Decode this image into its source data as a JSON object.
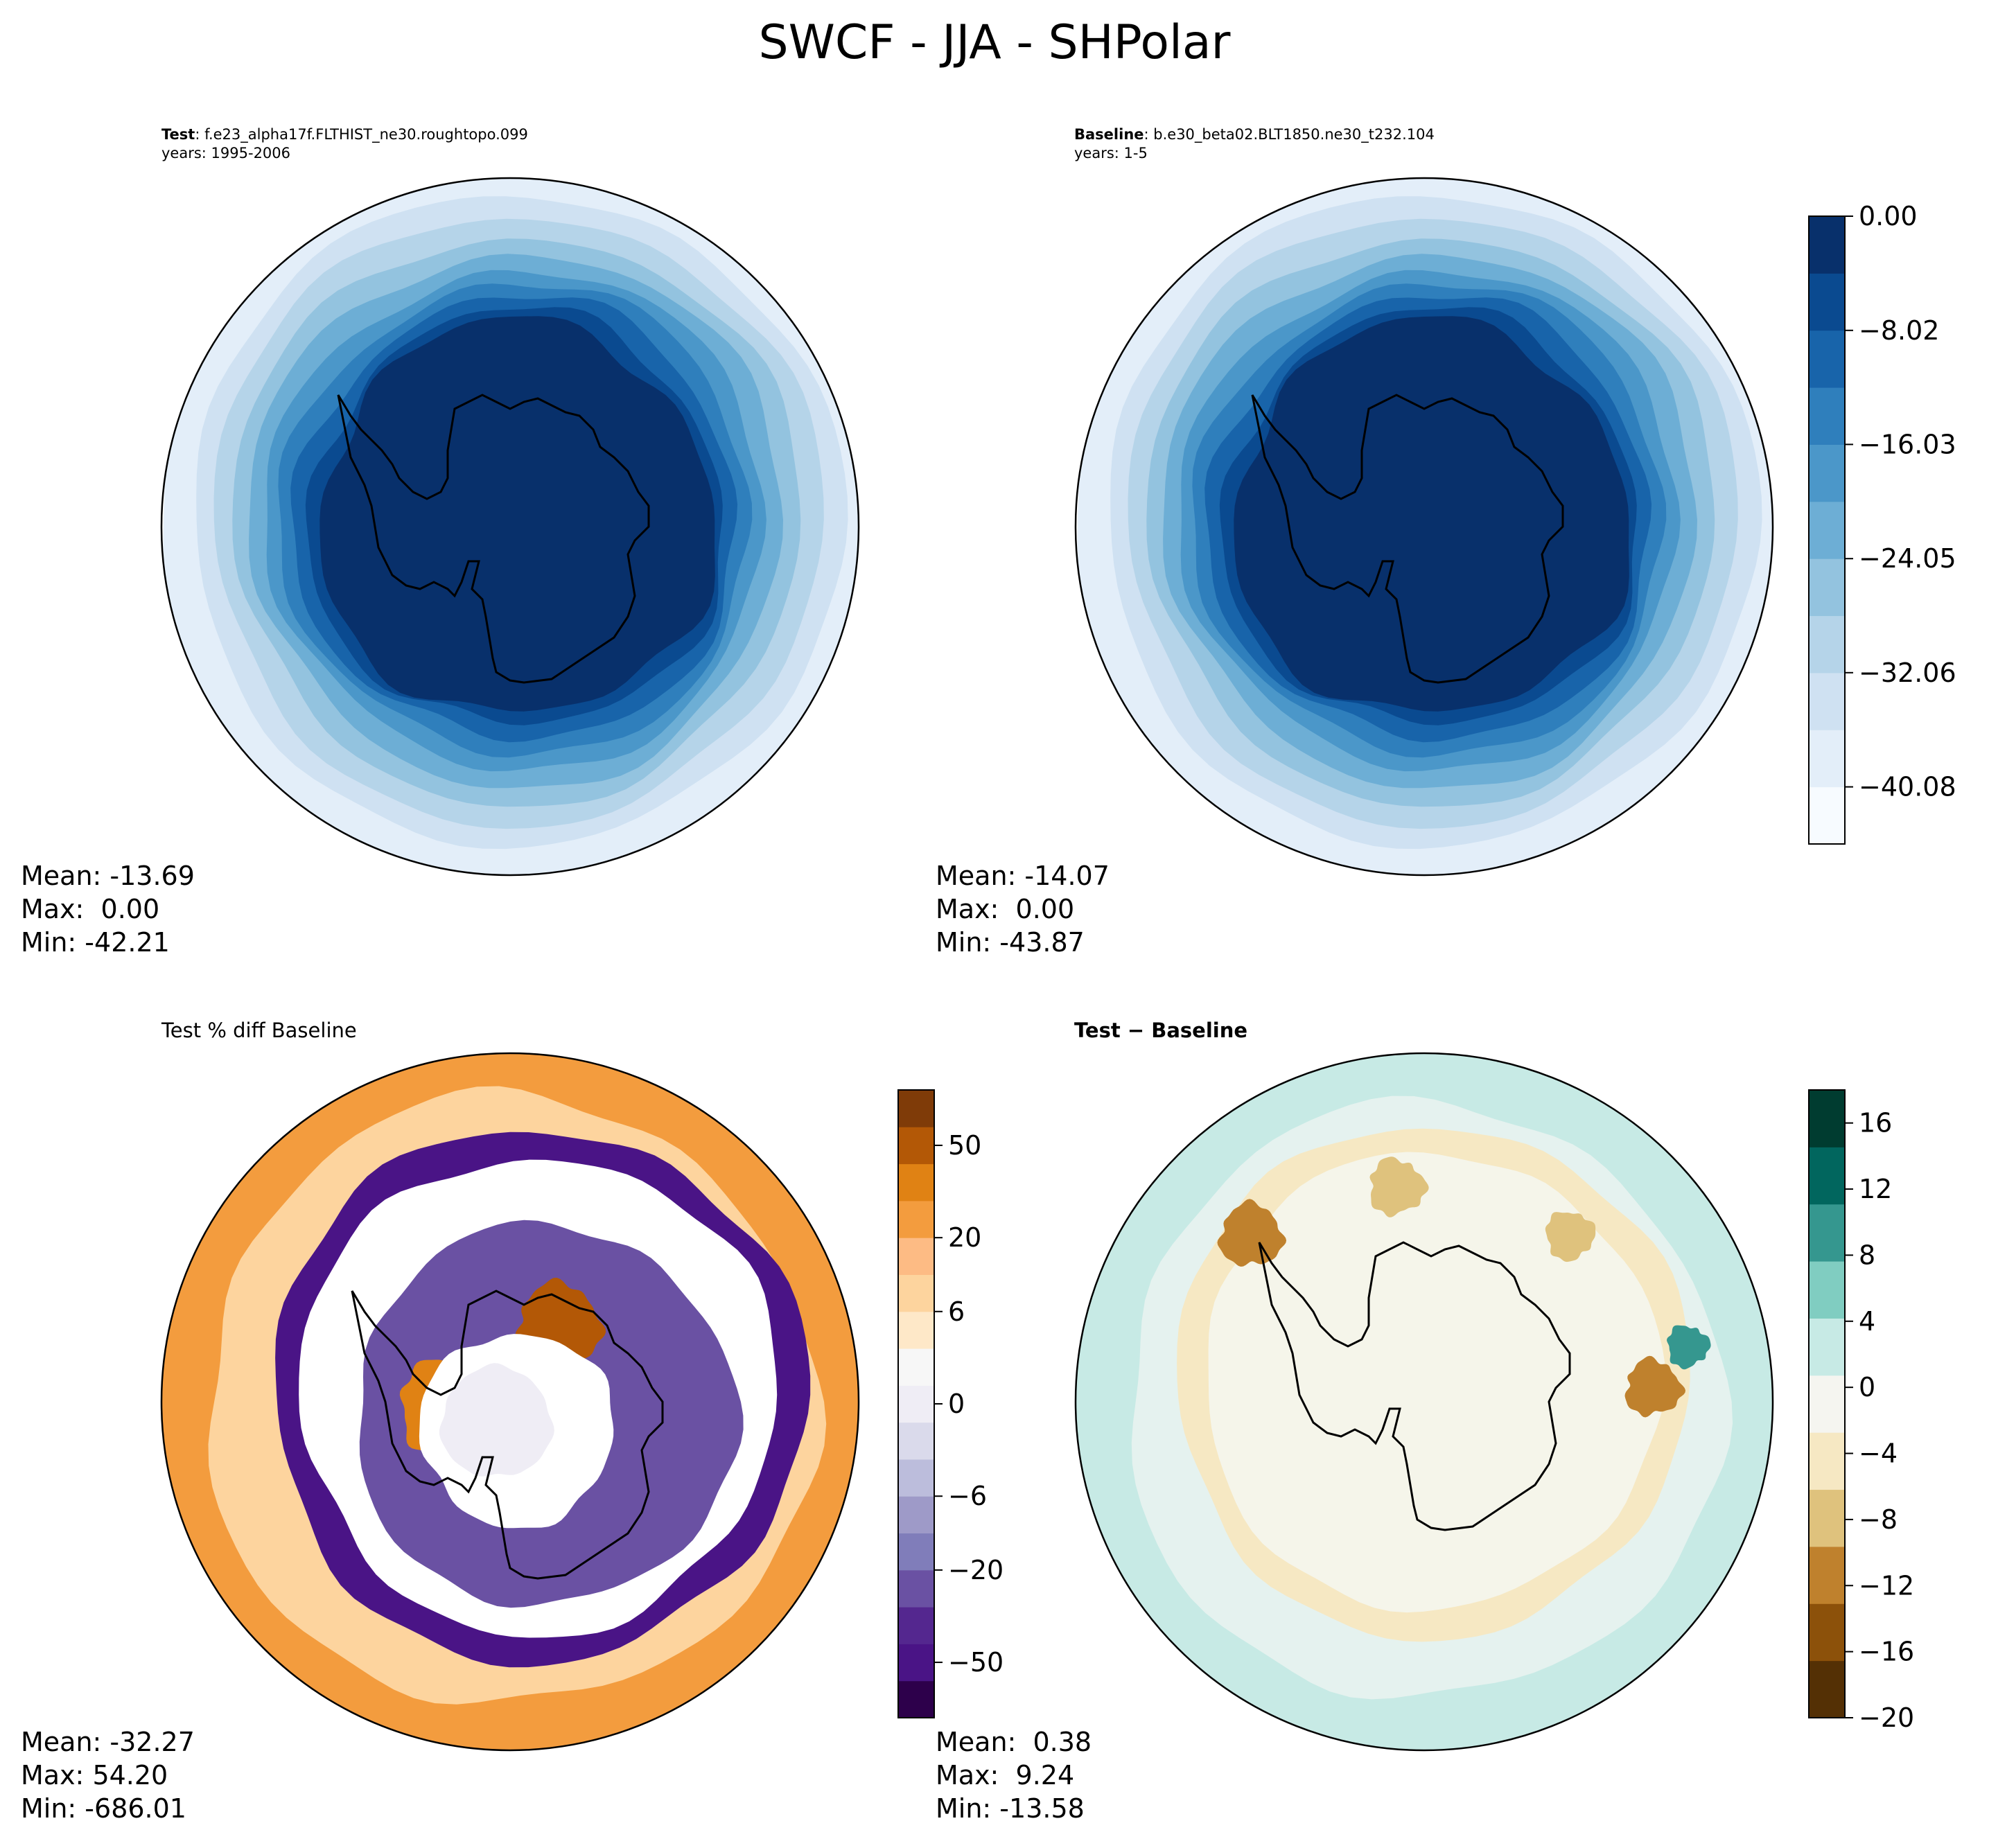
{
  "figure_title": "SWCF - JJA - SHPolar",
  "colors": {
    "blues": [
      "#f7fbff",
      "#e3eef9",
      "#cfe1f2",
      "#b5d4e9",
      "#93c3df",
      "#6daed5",
      "#4b97c9",
      "#2f7fbc",
      "#1864aa",
      "#0a4a90",
      "#08306b"
    ],
    "purples": [
      "#2d004b",
      "#4a1486",
      "#54278f",
      "#6a51a3",
      "#807dba",
      "#9e9ac8",
      "#bcbddc",
      "#dadaeb",
      "#efedf5",
      "#f7f7f7",
      "#fee8c8",
      "#fdd49e",
      "#fdbb84",
      "#f39c3e",
      "#e08214",
      "#b35806",
      "#7f3b08"
    ],
    "difference": [
      "#543005",
      "#8c510a",
      "#bf812d",
      "#dfc27d",
      "#f6e8c3",
      "#f5f5f0",
      "#c7eae5",
      "#80cdc1",
      "#35978f",
      "#01665e",
      "#003c30"
    ]
  },
  "panels": {
    "test": {
      "label": "Test",
      "case": ": f.e23_alpha17f.FLTHIST_ne30.roughtopo.099",
      "years": "years: 1995-2006",
      "stats": {
        "mean": "Mean: -13.69",
        "max": "Max:  0.00",
        "min": "Min: -42.21"
      }
    },
    "baseline": {
      "label": "Baseline",
      "case": ": b.e30_beta02.BLT1850.ne30_t232.104",
      "years": "years: 1-5",
      "stats": {
        "mean": "Mean: -14.07",
        "max": "Max:  0.00",
        "min": "Min: -43.87"
      }
    },
    "pctdiff": {
      "title": "Test % diff Baseline",
      "stats": {
        "mean": "Mean: -32.27",
        "max": "Max: 54.20",
        "min": "Min: -686.01"
      }
    },
    "diff": {
      "title": "Test − Baseline",
      "stats": {
        "mean": "Mean:  0.38",
        "max": "Max:  9.24",
        "min": "Min: -13.58"
      }
    }
  },
  "chart_data": [
    {
      "type": "heatmap",
      "name": "test",
      "title": "Test: f.e23_alpha17f.FLTHIST_ne30.roughtopo.099 years: 1995-2006",
      "projection": "south polar stereographic",
      "value_range": [
        -42.21,
        0.0
      ],
      "mean": -13.69,
      "contour_levels": [
        -44,
        -40,
        -36,
        -32,
        -28,
        -24,
        -20,
        -16,
        -12,
        -8,
        -4,
        0
      ]
    },
    {
      "type": "heatmap",
      "name": "baseline",
      "title": "Baseline: b.e30_beta02.BLT1850.ne30_t232.104 years: 1-5",
      "projection": "south polar stereographic",
      "value_range": [
        -43.87,
        0.0
      ],
      "mean": -14.07,
      "colorbar": {
        "ticks": [
          0.0,
          -8.02,
          -16.03,
          -24.05,
          -32.06,
          -40.08
        ],
        "tick_labels": [
          "0.00",
          "−8.02",
          "−16.03",
          "−24.05",
          "−32.06",
          "−40.08"
        ],
        "range": [
          -44.09,
          0.0
        ]
      }
    },
    {
      "type": "heatmap",
      "name": "pctdiff",
      "title": "Test % diff Baseline",
      "projection": "south polar stereographic",
      "value_range": [
        -686.01,
        54.2
      ],
      "mean": -32.27,
      "colorbar": {
        "ticks": [
          50,
          20,
          6,
          0,
          -6,
          -20,
          -50
        ],
        "tick_labels": [
          "50",
          "20",
          "6",
          "0",
          "−6",
          "−20",
          "−50"
        ],
        "n_bins": 17
      }
    },
    {
      "type": "heatmap",
      "name": "diff",
      "title": "Test − Baseline",
      "projection": "south polar stereographic",
      "value_range": [
        -13.58,
        9.24
      ],
      "mean": 0.38,
      "colorbar": {
        "ticks": [
          16,
          12,
          8,
          4,
          0,
          -4,
          -8,
          -12,
          -16,
          -20
        ],
        "tick_labels": [
          "16",
          "12",
          "8",
          "4",
          "0",
          "−4",
          "−8",
          "−12",
          "−16",
          "−20"
        ],
        "range": [
          -20,
          18
        ]
      }
    }
  ]
}
